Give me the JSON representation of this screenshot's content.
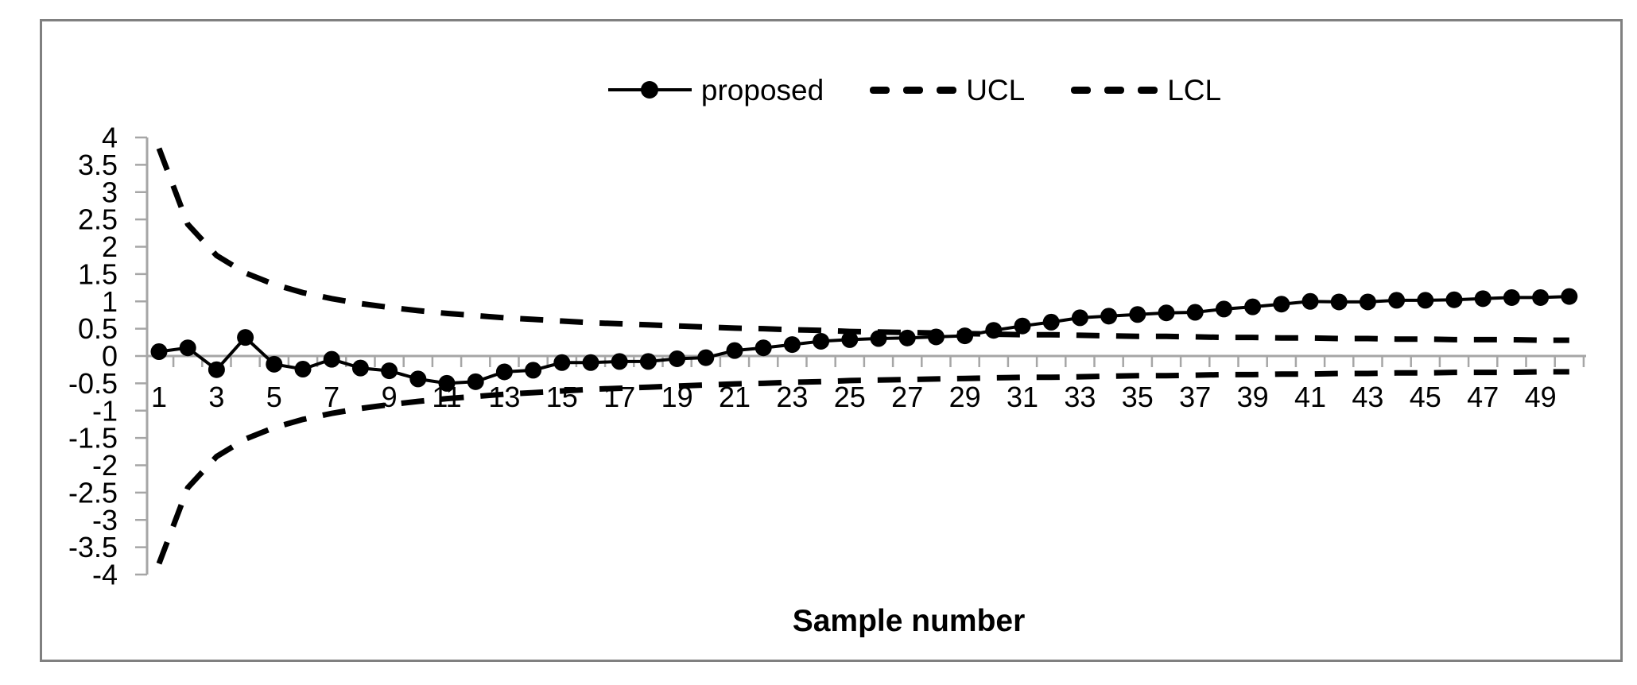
{
  "chart_data": {
    "type": "line",
    "title": "",
    "xlabel": "Sample number",
    "ylabel": "",
    "x": [
      1,
      2,
      3,
      4,
      5,
      6,
      7,
      8,
      9,
      10,
      11,
      12,
      13,
      14,
      15,
      16,
      17,
      18,
      19,
      20,
      21,
      22,
      23,
      24,
      25,
      26,
      27,
      28,
      29,
      30,
      31,
      32,
      33,
      34,
      35,
      36,
      37,
      38,
      39,
      40,
      41,
      42,
      43,
      44,
      45,
      46,
      47,
      48,
      49,
      50
    ],
    "series": [
      {
        "name": "proposed",
        "line": "solid",
        "marker": "filled-circle",
        "color": "#000000",
        "values": [
          0.08,
          0.15,
          -0.25,
          0.34,
          -0.15,
          -0.24,
          -0.06,
          -0.22,
          -0.27,
          -0.42,
          -0.5,
          -0.47,
          -0.29,
          -0.26,
          -0.12,
          -0.12,
          -0.1,
          -0.1,
          -0.05,
          -0.03,
          0.1,
          0.15,
          0.21,
          0.27,
          0.3,
          0.32,
          0.33,
          0.35,
          0.37,
          0.47,
          0.55,
          0.62,
          0.7,
          0.73,
          0.76,
          0.79,
          0.8,
          0.86,
          0.9,
          0.95,
          1.0,
          0.99,
          0.99,
          1.02,
          1.02,
          1.03,
          1.05,
          1.07,
          1.07,
          1.09
        ]
      },
      {
        "name": "UCL",
        "line": "dashed",
        "marker": "none",
        "color": "#000000",
        "values": [
          3.8,
          2.41,
          1.84,
          1.52,
          1.31,
          1.16,
          1.05,
          0.96,
          0.89,
          0.83,
          0.78,
          0.74,
          0.7,
          0.67,
          0.64,
          0.61,
          0.59,
          0.57,
          0.55,
          0.53,
          0.51,
          0.5,
          0.48,
          0.47,
          0.45,
          0.44,
          0.43,
          0.42,
          0.41,
          0.4,
          0.39,
          0.39,
          0.38,
          0.37,
          0.36,
          0.36,
          0.35,
          0.34,
          0.34,
          0.33,
          0.33,
          0.32,
          0.32,
          0.31,
          0.31,
          0.3,
          0.3,
          0.3,
          0.29,
          0.29
        ]
      },
      {
        "name": "LCL",
        "line": "dashed",
        "marker": "none",
        "color": "#000000",
        "values": [
          -3.8,
          -2.41,
          -1.84,
          -1.52,
          -1.31,
          -1.16,
          -1.05,
          -0.96,
          -0.89,
          -0.83,
          -0.78,
          -0.74,
          -0.7,
          -0.67,
          -0.64,
          -0.61,
          -0.59,
          -0.57,
          -0.55,
          -0.53,
          -0.51,
          -0.5,
          -0.48,
          -0.47,
          -0.45,
          -0.44,
          -0.43,
          -0.42,
          -0.41,
          -0.4,
          -0.39,
          -0.39,
          -0.38,
          -0.37,
          -0.36,
          -0.36,
          -0.35,
          -0.34,
          -0.34,
          -0.33,
          -0.33,
          -0.32,
          -0.32,
          -0.31,
          -0.31,
          -0.3,
          -0.3,
          -0.3,
          -0.29,
          -0.29
        ]
      }
    ],
    "ylim": [
      -4,
      4
    ],
    "ytick_step": 0.5,
    "ytick_labels": [
      "4",
      "3.5",
      "3",
      "2.5",
      "2",
      "1.5",
      "1",
      "0.5",
      "0",
      "-0.5",
      "-1",
      "-1.5",
      "-2",
      "-2.5",
      "-3",
      "-3.5",
      "-4"
    ],
    "xtick_labels": [
      "1",
      "3",
      "5",
      "7",
      "9",
      "11",
      "13",
      "15",
      "17",
      "19",
      "21",
      "23",
      "25",
      "27",
      "29",
      "31",
      "33",
      "35",
      "37",
      "39",
      "41",
      "43",
      "45",
      "47",
      "49"
    ],
    "legend_position": "top-center",
    "grid": false,
    "axis_color": "#a6a6a6",
    "text_color": "#000000",
    "frame_border_color": "#808080",
    "background": "#ffffff"
  }
}
